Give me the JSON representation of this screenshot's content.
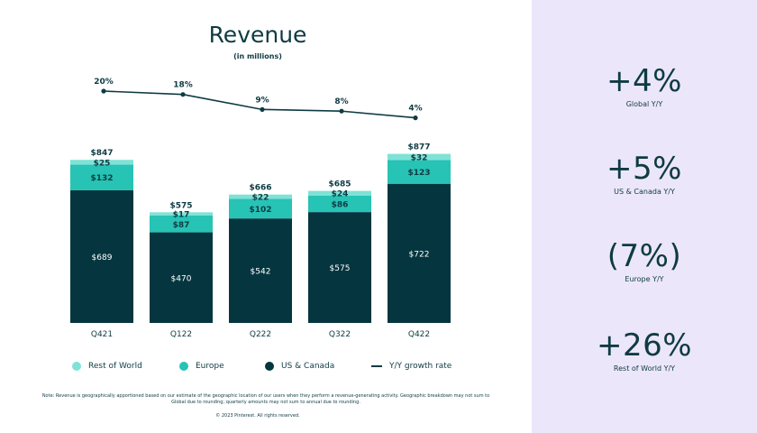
{
  "chart_data": {
    "type": "bar",
    "stacked": true,
    "title": "Revenue",
    "subtitle": "(in millions)",
    "categories": [
      "Q421",
      "Q122",
      "Q222",
      "Q322",
      "Q422"
    ],
    "totals": [
      "$847",
      "$575",
      "$666",
      "$685",
      "$877"
    ],
    "series": [
      {
        "name": "US & Canada",
        "color": "#05363f",
        "values": [
          689,
          470,
          542,
          575,
          722
        ],
        "labels": [
          "$689",
          "$470",
          "$542",
          "$575",
          "$722"
        ]
      },
      {
        "name": "Europe",
        "color": "#27c3b5",
        "values": [
          132,
          87,
          102,
          86,
          123
        ],
        "labels": [
          "$132",
          "$87",
          "$102",
          "$86",
          "$123"
        ]
      },
      {
        "name": "Rest of World",
        "color": "#7fe2d6",
        "values": [
          25,
          17,
          22,
          24,
          32
        ],
        "labels": [
          "$25",
          "$17",
          "$22",
          "$24",
          "$32"
        ]
      }
    ],
    "growth": {
      "name": "Y/Y growth rate",
      "values": [
        20,
        18,
        9,
        8,
        4
      ],
      "labels": [
        "20%",
        "18%",
        "9%",
        "8%",
        "4%"
      ]
    },
    "ylim": [
      0,
      900
    ]
  },
  "legend": [
    {
      "label": "Rest of World",
      "color": "#7fe2d6",
      "kind": "dot"
    },
    {
      "label": "Europe",
      "color": "#27c3b5",
      "kind": "dot"
    },
    {
      "label": "US & Canada",
      "color": "#05363f",
      "kind": "dot"
    },
    {
      "label": "Y/Y growth rate",
      "color": "#0e3b43",
      "kind": "line"
    }
  ],
  "stats": [
    {
      "value": "+4%",
      "label": "Global Y/Y"
    },
    {
      "value": "+5%",
      "label": "US & Canada Y/Y"
    },
    {
      "value": "(7%)",
      "label": "Europe Y/Y"
    },
    {
      "value": "+26%",
      "label": "Rest of World Y/Y"
    }
  ],
  "note": "Note: Revenue is geographically apportioned based on our estimate of the geographic location of our users when they perform a revenue-generating activity. Geographic breakdown may not sum to Global due to rounding; quarterly amounts may not sum to annual due to rounding.",
  "copyright": "© 2023 Pinterest. All rights reserved."
}
